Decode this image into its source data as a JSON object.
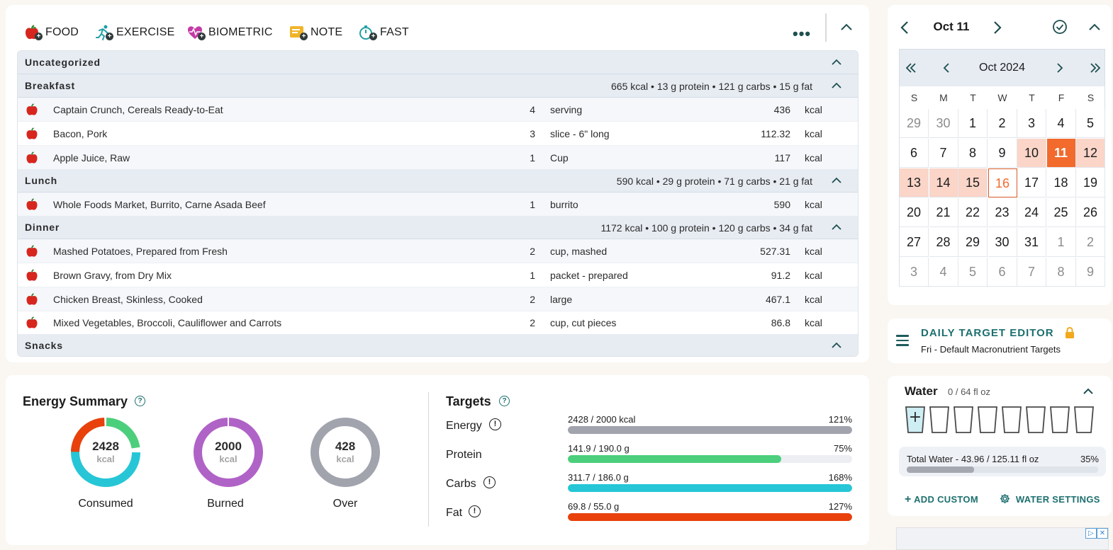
{
  "toolbar": {
    "items": [
      {
        "label": "FOOD",
        "icon": "apple-plus-icon"
      },
      {
        "label": "EXERCISE",
        "icon": "runner-plus-icon"
      },
      {
        "label": "BIOMETRIC",
        "icon": "heart-pulse-plus-icon"
      },
      {
        "label": "NOTE",
        "icon": "note-plus-icon"
      },
      {
        "label": "FAST",
        "icon": "stopwatch-plus-icon"
      }
    ]
  },
  "diary": {
    "uncategorized": "Uncategorized",
    "groups": [
      {
        "name": "Breakfast",
        "summary": "665 kcal • 13 g protein • 121 g carbs • 15 g fat",
        "foods": [
          {
            "name": "Captain Crunch, Cereals Ready-to-Eat",
            "qty": "4",
            "unit": "serving",
            "value": "436",
            "kcal": "kcal"
          },
          {
            "name": "Bacon, Pork",
            "qty": "3",
            "unit": "slice - 6\" long",
            "value": "112.32",
            "kcal": "kcal"
          },
          {
            "name": "Apple Juice, Raw",
            "qty": "1",
            "unit": "Cup",
            "value": "117",
            "kcal": "kcal"
          }
        ]
      },
      {
        "name": "Lunch",
        "summary": "590 kcal • 29 g protein • 71 g carbs • 21 g fat",
        "foods": [
          {
            "name": "Whole Foods Market, Burrito, Carne Asada Beef",
            "qty": "1",
            "unit": "burrito",
            "value": "590",
            "kcal": "kcal"
          }
        ]
      },
      {
        "name": "Dinner",
        "summary": "1172 kcal • 100 g protein • 120 g carbs • 34 g fat",
        "foods": [
          {
            "name": "Mashed Potatoes, Prepared from Fresh",
            "qty": "2",
            "unit": "cup, mashed",
            "value": "527.31",
            "kcal": "kcal"
          },
          {
            "name": "Brown Gravy, from Dry Mix",
            "qty": "1",
            "unit": "packet - prepared",
            "value": "91.2",
            "kcal": "kcal"
          },
          {
            "name": "Chicken Breast, Skinless, Cooked",
            "qty": "2",
            "unit": "large",
            "value": "467.1",
            "kcal": "kcal"
          },
          {
            "name": "Mixed Vegetables, Broccoli, Cauliflower and Carrots",
            "qty": "2",
            "unit": "cup, cut pieces",
            "value": "86.8",
            "kcal": "kcal"
          }
        ]
      }
    ],
    "snacks": "Snacks"
  },
  "energy_summary": {
    "title": "Energy Summary",
    "help": "?",
    "donuts": [
      {
        "value": "2428",
        "unit": "kcal",
        "label": "Consumed"
      },
      {
        "value": "2000",
        "unit": "kcal",
        "label": "Burned"
      },
      {
        "value": "428",
        "unit": "kcal",
        "label": "Over"
      }
    ]
  },
  "targets": {
    "title": "Targets",
    "help": "?",
    "rows": [
      {
        "label": "Energy",
        "text": "2428 / 2000 kcal",
        "pct": "121%",
        "fill": 1.0,
        "color": "#a1a3ad",
        "warn": "!"
      },
      {
        "label": "Protein",
        "text": "141.9 / 190.0 g",
        "pct": "75%",
        "fill": 0.75,
        "color": "#4ccf7c",
        "warn": ""
      },
      {
        "label": "Carbs",
        "text": "311.7 / 186.0 g",
        "pct": "168%",
        "fill": 1.0,
        "color": "#26c6d6",
        "warn": "!"
      },
      {
        "label": "Fat",
        "text": "69.8 / 55.0 g",
        "pct": "127%",
        "fill": 1.0,
        "color": "#e8410c",
        "warn": "!"
      }
    ]
  },
  "calendar": {
    "date": "Oct 11",
    "month": "Oct 2024",
    "dow": [
      "S",
      "M",
      "T",
      "W",
      "T",
      "F",
      "S"
    ],
    "days": [
      [
        "29",
        "30",
        "1",
        "2",
        "3",
        "4",
        "5"
      ],
      [
        "6",
        "7",
        "8",
        "9",
        "10",
        "11",
        "12"
      ],
      [
        "13",
        "14",
        "15",
        "16",
        "17",
        "18",
        "19"
      ],
      [
        "20",
        "21",
        "22",
        "23",
        "24",
        "25",
        "26"
      ],
      [
        "27",
        "28",
        "29",
        "30",
        "31",
        "1",
        "2"
      ],
      [
        "3",
        "4",
        "5",
        "6",
        "7",
        "8",
        "9"
      ]
    ]
  },
  "daily_target": {
    "title": "DAILY TARGET EDITOR",
    "subtitle": "Fri - Default Macronutrient Targets"
  },
  "water": {
    "title": "Water",
    "amount": "0 / 64 fl oz",
    "add_glass": "+",
    "total_label": "Total Water - 43.96 / 125.11 fl oz",
    "total_pct": "35%",
    "total_fill": 0.35,
    "add_custom": "ADD CUSTOM",
    "settings": "WATER SETTINGS"
  },
  "ad": {
    "choices": "▷",
    "close": "✕"
  },
  "colors": {
    "accent": "#1e6f6f",
    "selected_day": "#f26a2c",
    "week_highlight": "#fad5c8",
    "consumed_carbs": "#26c6d6",
    "consumed_fat": "#e8410c",
    "consumed_protein": "#4ccf7c",
    "burned": "#b063c6",
    "over": "#a1a3ad"
  }
}
